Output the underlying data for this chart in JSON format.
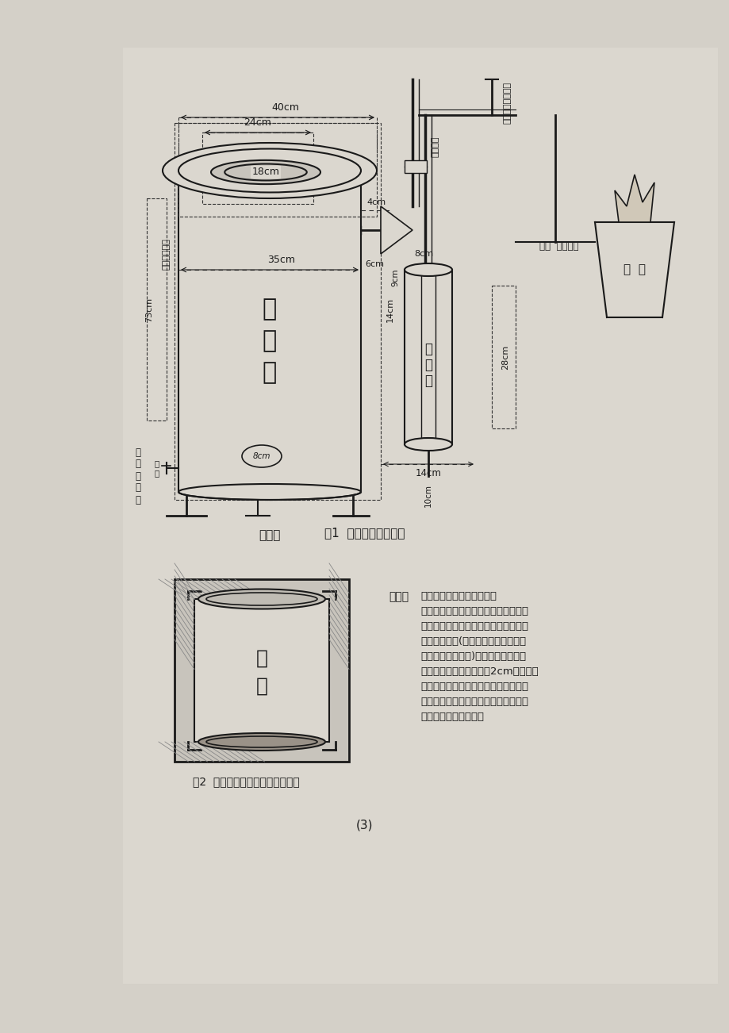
{
  "bg_color": "#d4d0c8",
  "page_bg": "#d4d0c8",
  "paper_color": "#e8e4dc",
  "line_color": "#1a1a1a",
  "dashed_color": "#333333",
  "title1": "图1  气化炉安装示意图",
  "title2": "图2  风机供氧分布盘、炉膛示意图",
  "page_num": "(3)",
  "fig1_caption": "图1  气化炉安装示意图",
  "fig2_caption": "图2  风机供氧分布盘、炉膛示意图",
  "explanation_title": "说明：",
  "explanation_text": "左图中炉体与炉膛间阴影部\n分为保温层。保温层所用材料为：耐高\n温高标号水泥、砂、粘性黄土加适量水\n混合成面团状(水份不易过多，以手拿\n起可操作定形为宜)，沿图中炉膛的形\n状进行播制，炉膛中间播2cm厚，上层\n和下层要求播围顶、密实，以利于燃料\n下沉和燃烧。注意：播制炉膛时要防止\n砂上落下堵塞供氧孔。"
}
